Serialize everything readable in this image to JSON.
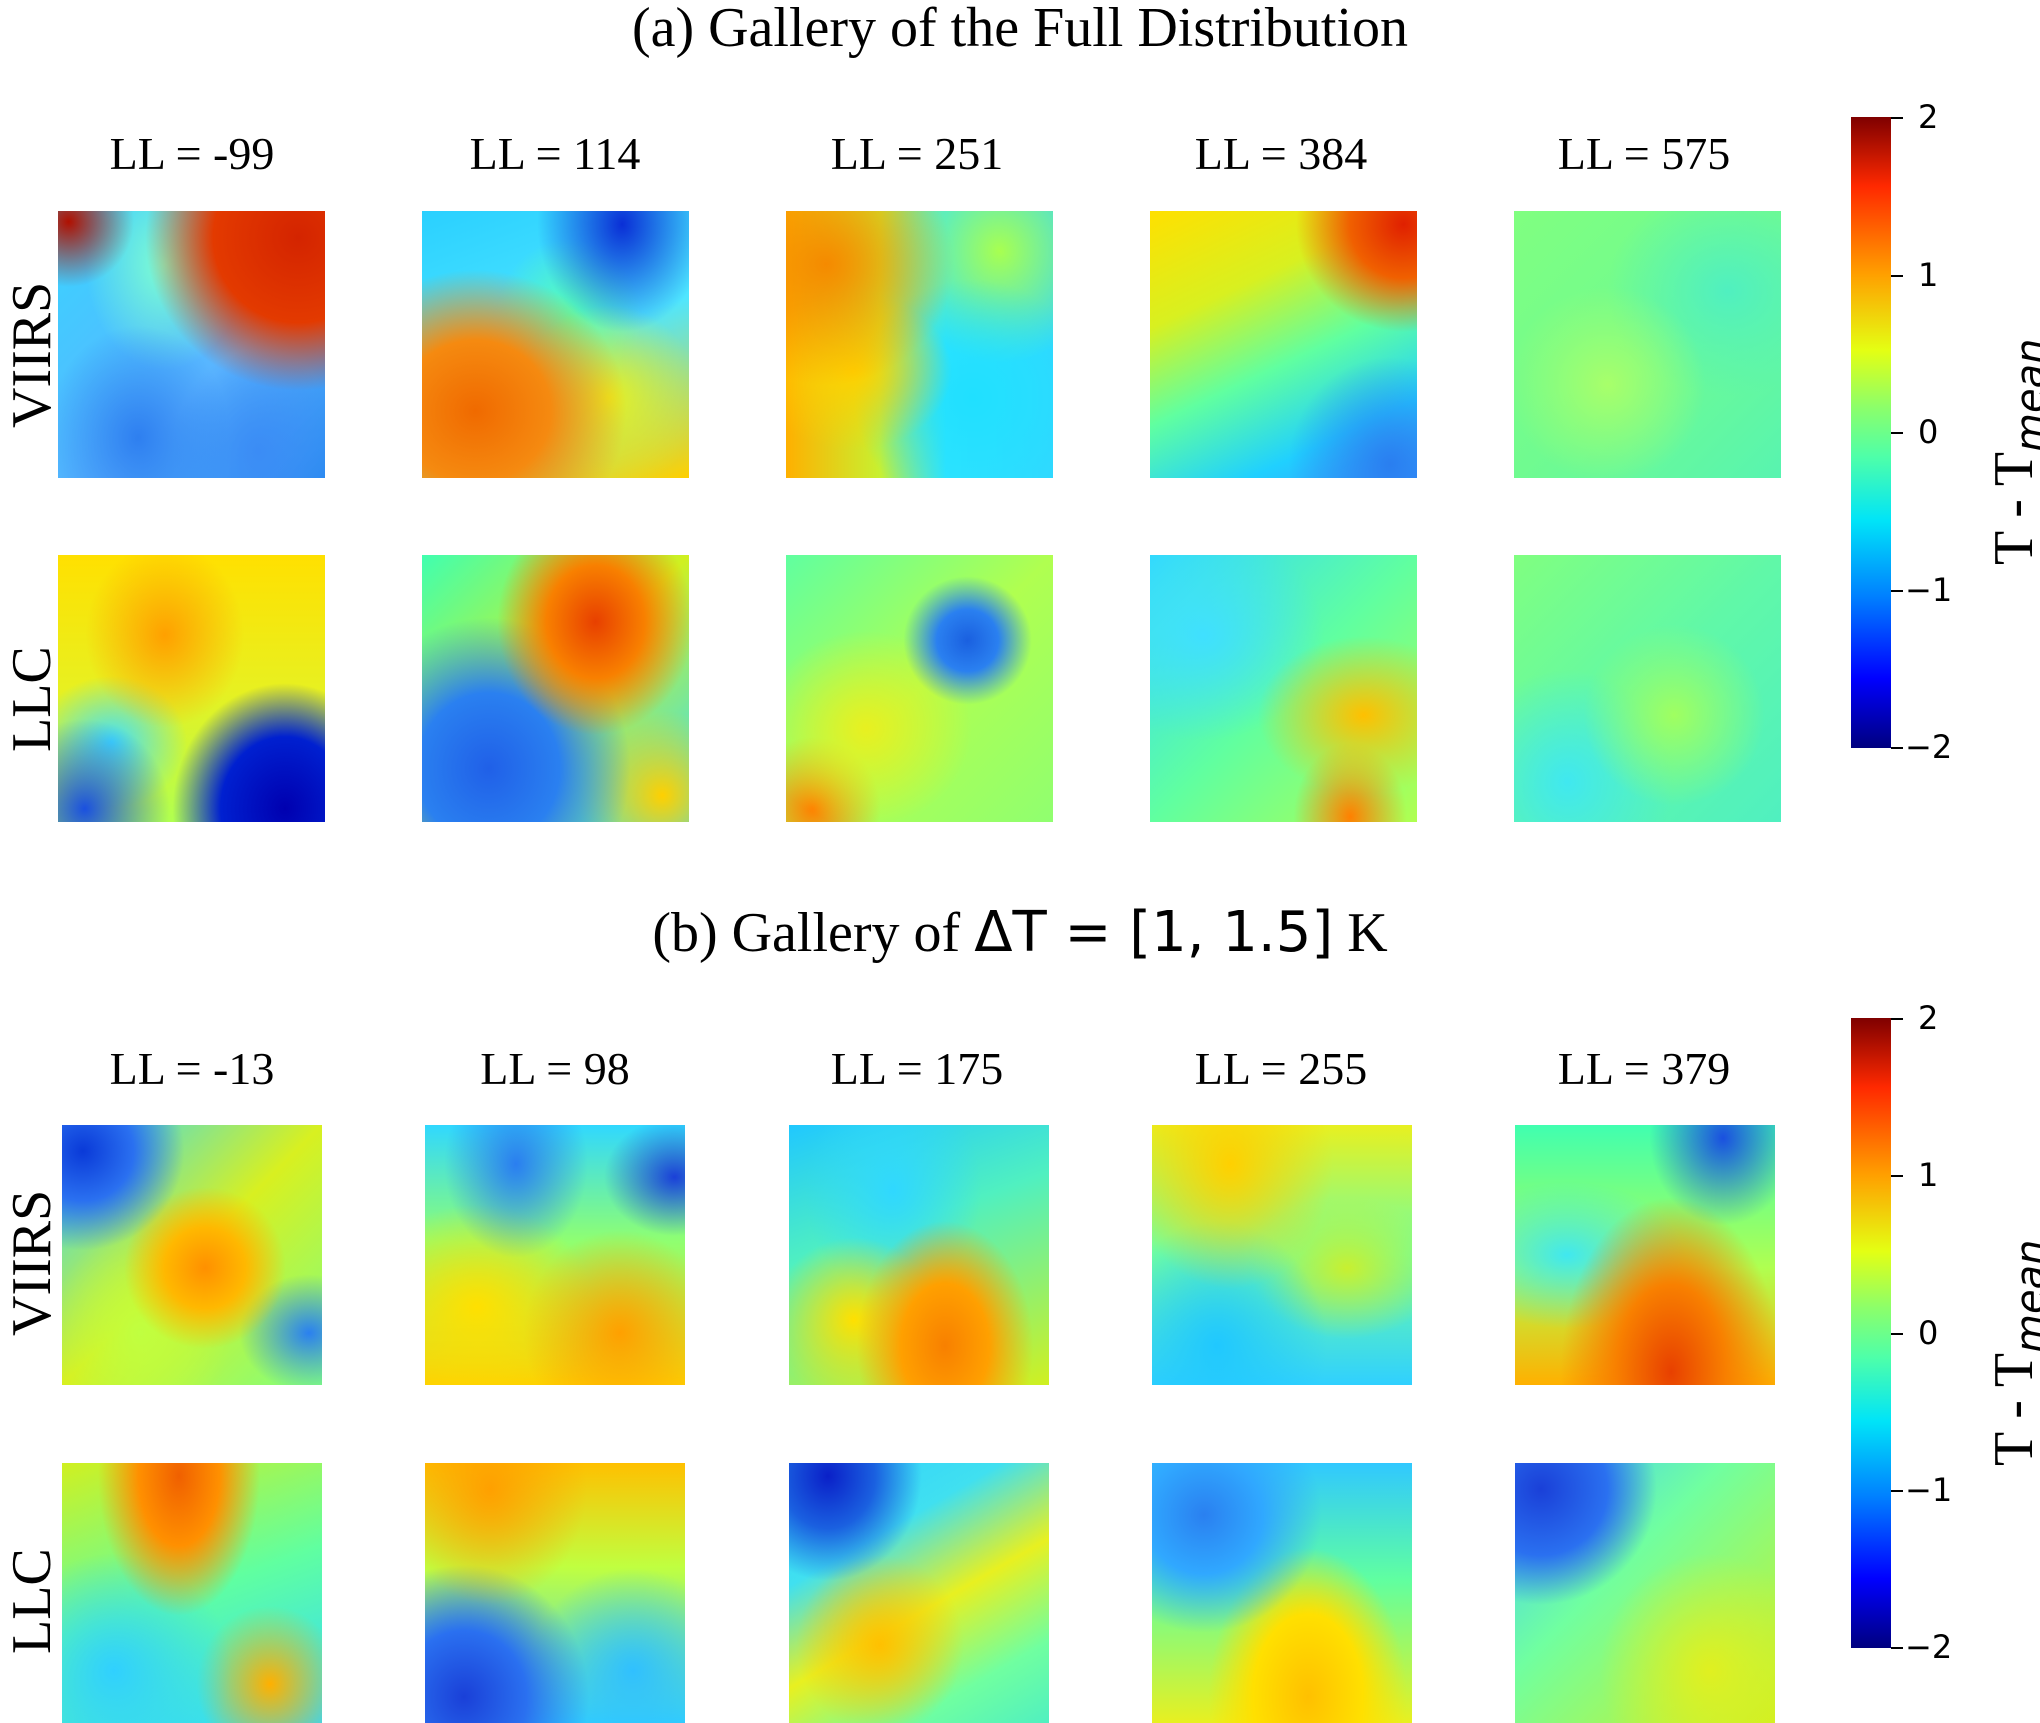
{
  "panel_a": {
    "title": "(a) Gallery of the Full Distribution",
    "columns": [
      "LL = -99",
      "LL = 114",
      "LL = 251",
      "LL = 384",
      "LL = 575"
    ],
    "rows": [
      "VIIRS",
      "LLC"
    ]
  },
  "panel_b": {
    "title_prefix": "(b) Gallery of ",
    "title_math": "ΔT = [1, 1.5]",
    "title_suffix": " K",
    "columns": [
      "LL = -13",
      "LL = 98",
      "LL = 175",
      "LL = 255",
      "LL = 379"
    ],
    "rows": [
      "VIIRS",
      "LLC"
    ]
  },
  "colorbar": {
    "colormap": "jet",
    "range": [
      -2,
      2
    ],
    "ticks": [
      "2",
      "1",
      "0",
      "−1",
      "−2"
    ],
    "label_main": "T - T",
    "label_sub": "mean"
  }
}
